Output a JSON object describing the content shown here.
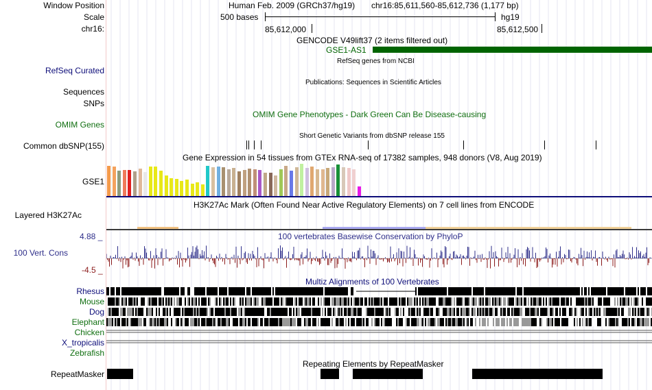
{
  "colors": {
    "gencode_green": "#006400",
    "refseq_blue": "#0c0c78",
    "omim_green": "#0f6e0f",
    "vert_blue": "#2e2e8a",
    "cons_pos": "#2e2e8a",
    "cons_neg": "#8b1a1a",
    "multiz_dark": "#000000",
    "multiz_gray": "#888888"
  },
  "header": {
    "window_position_label": "Window Position",
    "scale_label": "Scale",
    "chrom_label": "chr16:",
    "assembly_title": "Human Feb. 2009 (GRCh37/hg19)",
    "position_text": "chr16:85,611,560-85,612,736 (1,177 bp)",
    "scale_text": "500 bases",
    "scale_assembly": "hg19",
    "coord_1": "85,612,000",
    "coord_2": "85,612,500"
  },
  "tracks": {
    "gencode_title": "GENCODE V49lift37 (2 items filtered out)",
    "gencode_item": "GSE1-AS1",
    "refseq_label": "RefSeq Curated",
    "refseq_title": "RefSeq genes from NCBI",
    "sequences_label": "Sequences",
    "publications_title": "Publications: Sequences in Scientific Articles",
    "snps_label": "SNPs",
    "omim_title": "OMIM Gene Phenotypes - Dark Green Can Be Disease-causing",
    "omim_label": "OMIM Genes",
    "dbsnp_title": "Short Genetic Variants from dbSNP release 155",
    "dbsnp_label": "Common dbSNP(155)",
    "gtex_title": "Gene Expression in 54 tissues from GTEx RNA-seq of 17382 samples, 948 donors (V8, Aug 2019)",
    "gtex_label": "GSE1",
    "h3k27ac_title": "H3K27Ac Mark (Often Found Near Active Regulatory Elements) on 7 cell lines from ENCODE",
    "h3k27ac_label": "Layered H3K27Ac",
    "cons_max": "4.88 _",
    "cons_label": "100 Vert. Cons",
    "cons_min": "-4.5 _",
    "cons_title": "100 vertebrates Basewise Conservation by PhyloP",
    "multiz_title": "Multiz Alignments of 100 Vertebrates",
    "species": [
      {
        "name": "Rhesus",
        "color": "#0c0c78"
      },
      {
        "name": "Mouse",
        "color": "#0f6e0f"
      },
      {
        "name": "Dog",
        "color": "#0c0c78"
      },
      {
        "name": "Elephant",
        "color": "#0f6e0f"
      },
      {
        "name": "Chicken",
        "color": "#0f6e0f"
      },
      {
        "name": "X_tropicalis",
        "color": "#0c0c78"
      },
      {
        "name": "Zebrafish",
        "color": "#0f6e0f"
      }
    ],
    "repeat_title": "Repeating Elements by RepeatMasker",
    "repeat_label": "RepeatMasker"
  },
  "gtex_bars": [
    {
      "color": "#f59a4a",
      "value": 0.92
    },
    {
      "color": "#f4a25e",
      "value": 0.9
    },
    {
      "color": "#8e9b7d",
      "value": 0.78
    },
    {
      "color": "#f07a5a",
      "value": 0.8
    },
    {
      "color": "#e02020",
      "value": 0.8
    },
    {
      "color": "#b0a08a",
      "value": 0.75
    },
    {
      "color": "#e0b89a",
      "value": 0.83
    },
    {
      "color": "#e8e8e8",
      "value": 0.72
    },
    {
      "color": "#e8e818",
      "value": 0.9
    },
    {
      "color": "#e8e818",
      "value": 0.9
    },
    {
      "color": "#e8e818",
      "value": 0.78
    },
    {
      "color": "#e8e818",
      "value": 0.62
    },
    {
      "color": "#e8e818",
      "value": 0.55
    },
    {
      "color": "#e8e818",
      "value": 0.52
    },
    {
      "color": "#e8e818",
      "value": 0.45
    },
    {
      "color": "#e8e818",
      "value": 0.5
    },
    {
      "color": "#e8e818",
      "value": 0.38
    },
    {
      "color": "#e8e818",
      "value": 0.42
    },
    {
      "color": "#e8e818",
      "value": 0.36
    },
    {
      "color": "#20c8c8",
      "value": 0.92
    },
    {
      "color": "#d8c0a0",
      "value": 0.88
    },
    {
      "color": "#70b0e0",
      "value": 0.9
    },
    {
      "color": "#a89070",
      "value": 0.88
    },
    {
      "color": "#b8a898",
      "value": 0.82
    },
    {
      "color": "#c8b090",
      "value": 0.85
    },
    {
      "color": "#a08060",
      "value": 0.76
    },
    {
      "color": "#c0a080",
      "value": 0.8
    },
    {
      "color": "#b09070",
      "value": 0.84
    },
    {
      "color": "#c09078",
      "value": 0.82
    },
    {
      "color": "#a858c8",
      "value": 0.8
    },
    {
      "color": "#c0a888",
      "value": 0.7
    },
    {
      "color": "#886858",
      "value": 0.7
    },
    {
      "color": "#d0b8a0",
      "value": 0.62
    },
    {
      "color": "#a0c858",
      "value": 0.82
    },
    {
      "color": "#c8a888",
      "value": 0.92
    },
    {
      "color": "#6878e8",
      "value": 0.78
    },
    {
      "color": "#d0b898",
      "value": 0.88
    },
    {
      "color": "#c0f0a0",
      "value": 0.98
    },
    {
      "color": "#d0c0e0",
      "value": 0.86
    },
    {
      "color": "#e0a870",
      "value": 0.9
    },
    {
      "color": "#d8b890",
      "value": 0.82
    },
    {
      "color": "#e0b890",
      "value": 0.82
    },
    {
      "color": "#c8a878",
      "value": 0.85
    },
    {
      "color": "#b8a8c8",
      "value": 0.88
    },
    {
      "color": "#189038",
      "value": 0.96
    },
    {
      "color": "#d8c8b8",
      "value": 0.88
    },
    {
      "color": "#f0c8c8",
      "value": 0.86
    },
    {
      "color": "#f0d0d0",
      "value": 0.82
    },
    {
      "color": "#e818e8",
      "value": 0.3
    }
  ]
}
